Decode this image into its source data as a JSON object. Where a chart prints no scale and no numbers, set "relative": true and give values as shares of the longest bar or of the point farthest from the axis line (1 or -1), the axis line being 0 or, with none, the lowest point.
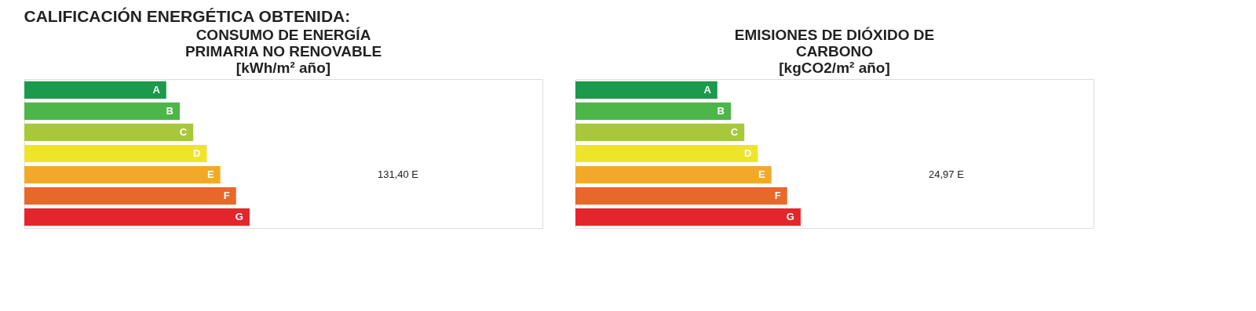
{
  "chart_data": [
    {
      "type": "bar",
      "orientation": "horizontal",
      "relative": true,
      "title": [
        "CONSUMO DE ENERGÍA",
        "PRIMARIA NO RENOVABLE",
        "[kWh/m² año]"
      ],
      "categories": [
        "A",
        "B",
        "C",
        "D",
        "E",
        "F",
        "G"
      ],
      "values": [
        0.63,
        0.69,
        0.75,
        0.81,
        0.87,
        0.94,
        1
      ],
      "colors": [
        "#1a9a4a",
        "#4cb649",
        "#a7c83a",
        "#eee52a",
        "#f3a928",
        "#e7692a",
        "#e2262c"
      ],
      "annotations": [
        "CALIFICACIÓN ENERGÉTICA OBTENIDA:",
        "131,40 E"
      ]
    },
    {
      "type": "bar",
      "orientation": "horizontal",
      "relative": true,
      "title": [
        "EMISIONES DE DIÓXIDO DE",
        "CARBONO",
        "[kgCO2/m² año]"
      ],
      "categories": [
        "A",
        "B",
        "C",
        "D",
        "E",
        "F",
        "G"
      ],
      "values": [
        0.63,
        0.69,
        0.75,
        0.81,
        0.87,
        0.94,
        1
      ],
      "colors": [
        "#1a9a4a",
        "#4cb649",
        "#a7c83a",
        "#eee52a",
        "#f3a928",
        "#e7692a",
        "#e2262c"
      ],
      "annotations": [
        "24,97 E"
      ]
    }
  ]
}
